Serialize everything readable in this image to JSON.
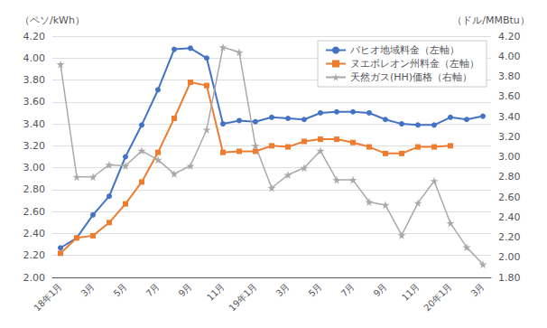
{
  "chart_data": {
    "type": "line",
    "categories": [
      "18年1月",
      null,
      "3月",
      null,
      "5月",
      null,
      "7月",
      null,
      "9月",
      null,
      "11月",
      null,
      "19年1月",
      null,
      "3月",
      null,
      "5月",
      null,
      "7月",
      null,
      "9月",
      null,
      "11月",
      null,
      "20年1月",
      null,
      "3月"
    ],
    "series": [
      {
        "name": "バヒオ地域料金（左軸）",
        "color": "#4472C4",
        "marker": "circle",
        "values": [
          2.27,
          2.36,
          2.57,
          2.74,
          3.1,
          3.39,
          3.71,
          4.08,
          4.09,
          4.0,
          3.4,
          3.43,
          3.42,
          3.46,
          3.45,
          3.44,
          3.5,
          3.51,
          3.51,
          3.5,
          3.44,
          3.4,
          3.39,
          3.39,
          3.46,
          3.44,
          3.47
        ]
      },
      {
        "name": "ヌエボレオン州料金（左軸）",
        "color": "#ED7D31",
        "marker": "square",
        "values": [
          2.22,
          2.36,
          2.38,
          2.5,
          2.67,
          2.87,
          3.14,
          3.45,
          3.78,
          3.75,
          3.14,
          3.15,
          3.15,
          3.2,
          3.19,
          3.24,
          3.26,
          3.26,
          3.23,
          3.19,
          3.13,
          3.13,
          3.19,
          3.19,
          3.2,
          null,
          null
        ]
      },
      {
        "name": "天然ガス(HH)価格（右軸）",
        "color": "#A9A9A9",
        "marker": "star",
        "axis": "y2",
        "values": [
          3.92,
          2.8,
          2.8,
          2.92,
          2.91,
          3.06,
          2.97,
          2.83,
          2.91,
          3.27,
          4.09,
          4.04,
          3.11,
          2.69,
          2.82,
          2.89,
          3.06,
          2.77,
          2.77,
          2.55,
          2.52,
          2.22,
          2.54,
          2.76,
          2.34,
          2.1,
          1.93
        ]
      }
    ],
    "ylabel": "（ペソ/kWh）",
    "y2label": "（ドル/MMBtu）",
    "ylim": [
      2.0,
      4.2
    ],
    "yticks": [
      {
        "value": 2.0,
        "label": "2.00"
      },
      {
        "value": 2.2,
        "label": "2.20"
      },
      {
        "value": 2.4,
        "label": "2.40"
      },
      {
        "value": 2.6,
        "label": "2.60"
      },
      {
        "value": 2.8,
        "label": "2.80"
      },
      {
        "value": 3.0,
        "label": "3.00"
      },
      {
        "value": 3.2,
        "label": "3.20"
      },
      {
        "value": 3.4,
        "label": "3.40"
      },
      {
        "value": 3.6,
        "label": "3.60"
      },
      {
        "value": 3.8,
        "label": "3.80"
      },
      {
        "value": 4.0,
        "label": "4.00"
      },
      {
        "value": 4.2,
        "label": "4.20"
      }
    ],
    "y2lim": [
      1.8,
      4.2
    ],
    "y2ticks": [
      {
        "value": 1.8,
        "label": "1.80"
      },
      {
        "value": 2.0,
        "label": "2.00"
      },
      {
        "value": 2.2,
        "label": "2.20"
      },
      {
        "value": 2.4,
        "label": "2.40"
      },
      {
        "value": 2.6,
        "label": "2.60"
      },
      {
        "value": 2.8,
        "label": "2.80"
      },
      {
        "value": 3.0,
        "label": "3.00"
      },
      {
        "value": 3.2,
        "label": "3.20"
      },
      {
        "value": 3.4,
        "label": "3.40"
      },
      {
        "value": 3.6,
        "label": "3.60"
      },
      {
        "value": 3.8,
        "label": "3.80"
      },
      {
        "value": 4.0,
        "label": "4.00"
      },
      {
        "value": 4.2,
        "label": "4.20"
      }
    ],
    "grid": true,
    "legend": "upper right"
  }
}
